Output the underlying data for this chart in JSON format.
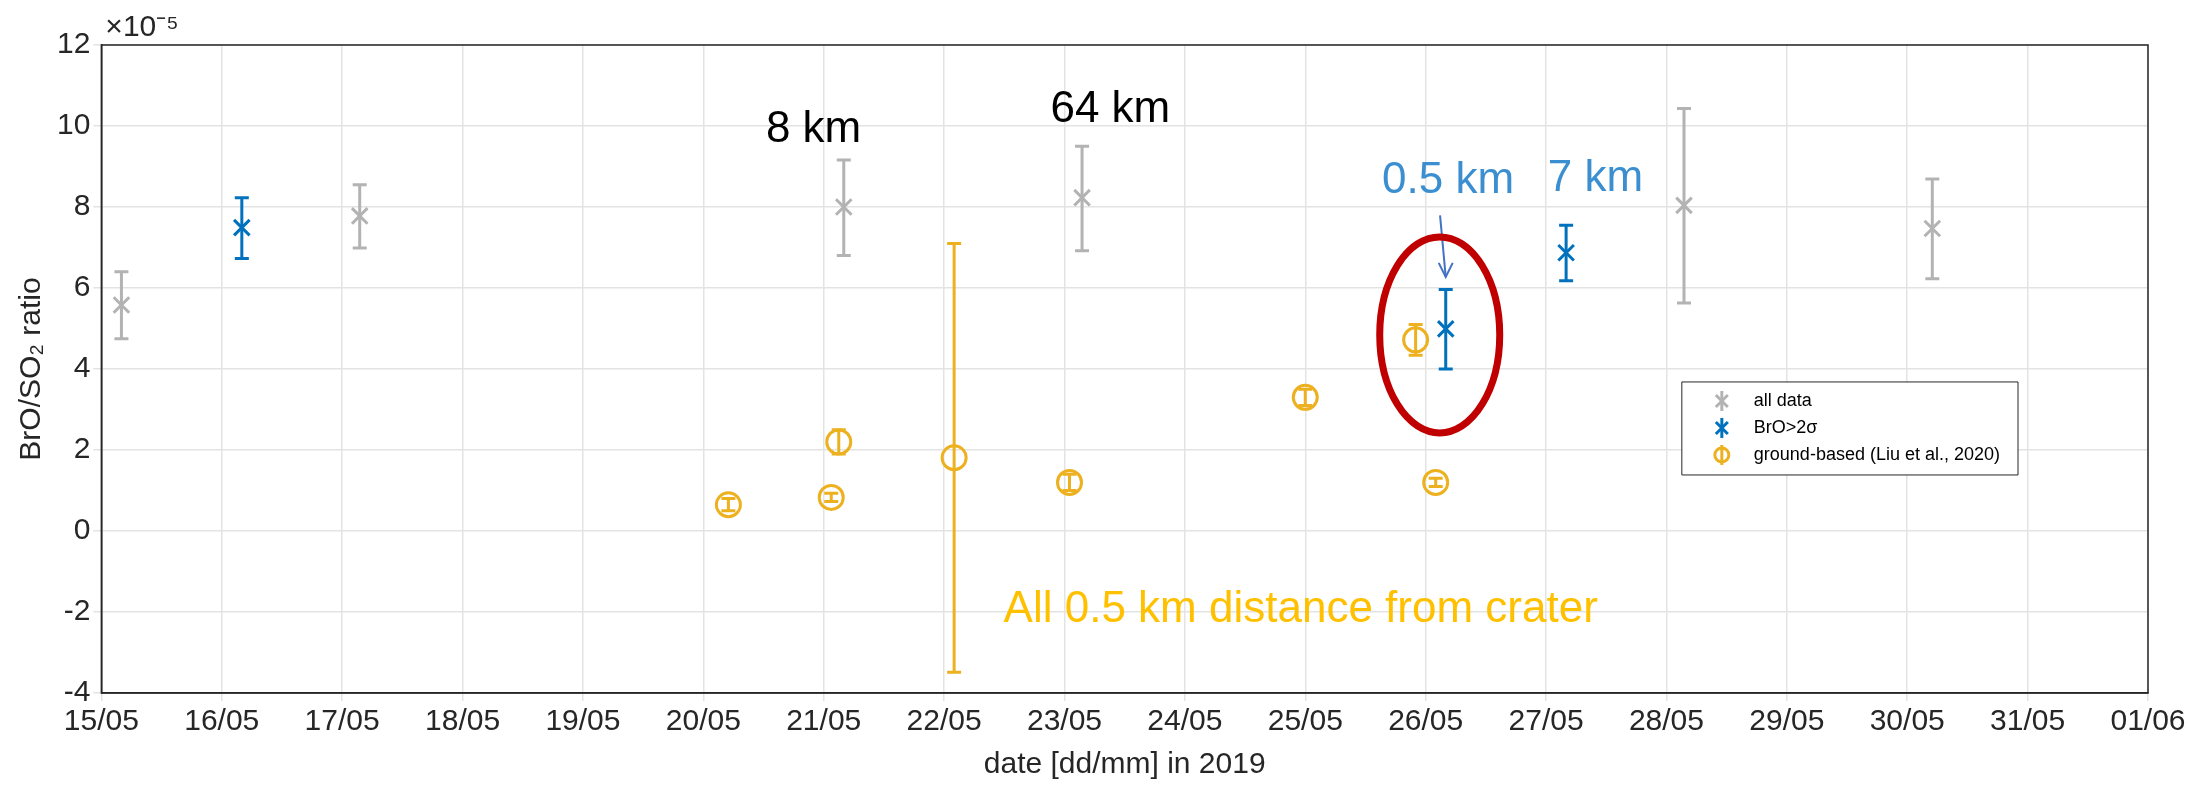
{
  "chart_data": {
    "type": "scatter",
    "xlabel": "date [dd/mm] in 2019",
    "ylabel": "BrO/SO₂ ratio",
    "xlim": [
      "2019-05-15",
      "2019-06-01"
    ],
    "xticks": [
      {
        "value": "2019-05-15",
        "label": "15/05"
      },
      {
        "value": "2019-05-16",
        "label": "16/05"
      },
      {
        "value": "2019-05-17",
        "label": "17/05"
      },
      {
        "value": "2019-05-18",
        "label": "18/05"
      },
      {
        "value": "2019-05-19",
        "label": "19/05"
      },
      {
        "value": "2019-05-20",
        "label": "20/05"
      },
      {
        "value": "2019-05-21",
        "label": "21/05"
      },
      {
        "value": "2019-05-22",
        "label": "22/05"
      },
      {
        "value": "2019-05-23",
        "label": "23/05"
      },
      {
        "value": "2019-05-24",
        "label": "24/05"
      },
      {
        "value": "2019-05-25",
        "label": "25/05"
      },
      {
        "value": "2019-05-26",
        "label": "26/05"
      },
      {
        "value": "2019-05-27",
        "label": "27/05"
      },
      {
        "value": "2019-05-28",
        "label": "28/05"
      },
      {
        "value": "2019-05-29",
        "label": "29/05"
      },
      {
        "value": "2019-05-30",
        "label": "30/05"
      },
      {
        "value": "2019-05-31",
        "label": "31/05"
      },
      {
        "value": "2019-06-01",
        "label": "01/06"
      }
    ],
    "ylim": [
      -4,
      12
    ],
    "yticks": [
      -4,
      -2,
      0,
      2,
      4,
      6,
      8,
      10,
      12
    ],
    "grid": true,
    "legend": "right",
    "series": [
      {
        "name": "all data",
        "color": "#b3b3b3",
        "marker": "cross",
        "x": [
          "2019-05-15T04:00",
          "2019-05-17T03:30",
          "2019-05-21T04:00",
          "2019-05-23T03:30",
          "2019-05-28T03:30",
          "2019-05-30T05:00"
        ],
        "values": [
          5.58,
          7.78,
          8.0,
          8.23,
          8.04,
          7.47
        ],
        "errors": [
          [
            4.75,
            6.4
          ],
          [
            6.99,
            8.55
          ],
          [
            6.8,
            9.16
          ],
          [
            6.92,
            9.5
          ],
          [
            5.63,
            10.43
          ],
          [
            6.23,
            8.69
          ]
        ]
      },
      {
        "name": "BrO>2σ",
        "color": "#0072bd",
        "marker": "cross",
        "x": [
          "2019-05-16T04:00",
          "2019-05-26T04:00",
          "2019-05-27T04:00"
        ],
        "values": [
          7.49,
          4.99,
          6.87
        ],
        "errors": [
          [
            6.73,
            8.23
          ],
          [
            4.0,
            5.96
          ],
          [
            6.18,
            7.55
          ]
        ]
      },
      {
        "name": "ground-based (Liu et al., 2020)",
        "color": "#edb120",
        "marker": "circle",
        "x": [
          "2019-05-20T05:00",
          "2019-05-21T01:30",
          "2019-05-21T03:00",
          "2019-05-22T02:00",
          "2019-05-23T01:00",
          "2019-05-25T00:00",
          "2019-05-25T22:00",
          "2019-05-26T02:00"
        ],
        "values": [
          0.65,
          0.83,
          2.2,
          1.81,
          1.2,
          3.3,
          4.72,
          1.2
        ],
        "errors": [
          0.15,
          0.1,
          0.3,
          [
            -3.49,
            7.1
          ],
          0.2,
          0.2,
          [
            4.34,
            5.1
          ],
          0.1
        ]
      }
    ],
    "annotations": [
      "×10⁻⁵",
      "8 km",
      "64 km",
      "0.5 km",
      "7 km",
      "All 0.5 km distance from crater"
    ]
  }
}
